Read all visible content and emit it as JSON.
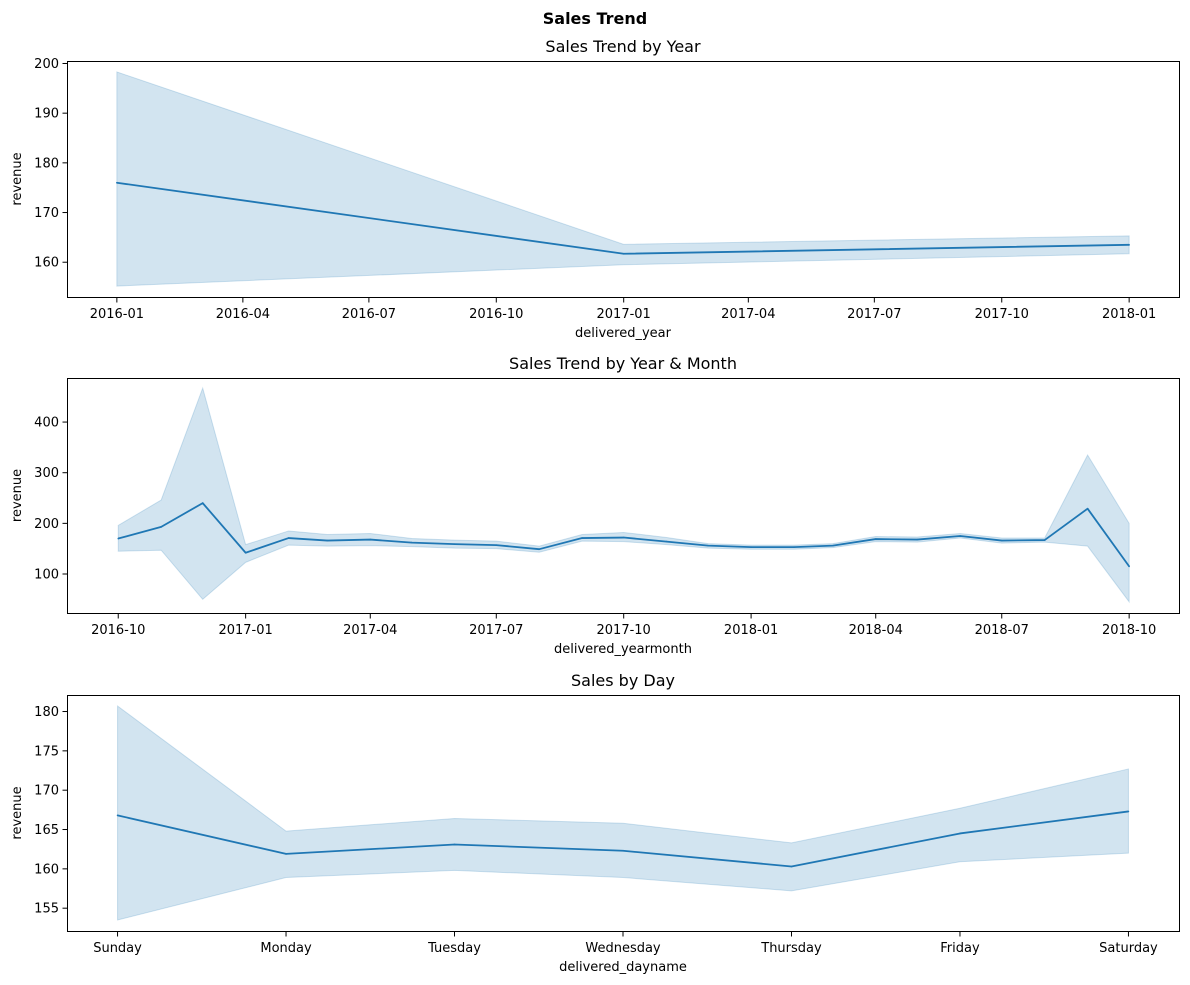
{
  "figure": {
    "title": "Sales Trend",
    "colors": {
      "line": "#1f77b4",
      "band": "#1f77b4"
    }
  },
  "chart_data": [
    {
      "type": "line",
      "title": "Sales Trend by Year",
      "xlabel": "delivered_year",
      "ylabel": "revenue",
      "x_axis": "date",
      "xlim": [
        "2015-11-26",
        "2018-02-06"
      ],
      "ylim": [
        153,
        200.5
      ],
      "x_ticks": [
        "2016-01",
        "2016-04",
        "2016-07",
        "2016-10",
        "2017-01",
        "2017-04",
        "2017-07",
        "2017-10",
        "2018-01"
      ],
      "y_ticks": [
        160,
        170,
        180,
        190,
        200
      ],
      "x": [
        "2016-01-01",
        "2017-01-01",
        "2018-01-01"
      ],
      "values": [
        176,
        161.7,
        163.5
      ],
      "ci_lower": [
        155.2,
        159.5,
        161.7
      ],
      "ci_upper": [
        198.3,
        163.6,
        165.3
      ]
    },
    {
      "type": "line",
      "title": "Sales Trend by Year & Month",
      "xlabel": "delivered_yearmonth",
      "ylabel": "revenue",
      "x_axis": "date",
      "xlim": [
        "2016-08-25",
        "2018-11-06"
      ],
      "ylim": [
        23,
        487
      ],
      "x_ticks": [
        "2016-10",
        "2017-01",
        "2017-04",
        "2017-07",
        "2017-10",
        "2018-01",
        "2018-04",
        "2018-07",
        "2018-10"
      ],
      "y_ticks": [
        100,
        200,
        300,
        400
      ],
      "x": [
        "2016-10-01",
        "2016-11-01",
        "2016-12-01",
        "2017-01-01",
        "2017-02-01",
        "2017-03-01",
        "2017-04-01",
        "2017-05-01",
        "2017-06-01",
        "2017-07-01",
        "2017-08-01",
        "2017-09-01",
        "2017-10-01",
        "2017-11-01",
        "2017-12-01",
        "2018-01-01",
        "2018-02-01",
        "2018-03-01",
        "2018-04-01",
        "2018-05-01",
        "2018-06-01",
        "2018-07-01",
        "2018-08-01",
        "2018-09-01",
        "2018-10-01"
      ],
      "values": [
        170,
        193,
        240,
        142,
        171,
        166,
        168,
        162,
        159,
        157,
        149,
        171,
        172,
        164,
        156,
        153,
        153,
        156,
        169,
        168,
        175,
        166,
        167,
        229,
        115
      ],
      "ci_lower": [
        145,
        147,
        50,
        123,
        157,
        155,
        156,
        154,
        151,
        150,
        143,
        165,
        164,
        158,
        151,
        149,
        149,
        152,
        164,
        163,
        171,
        161,
        163,
        155,
        45
      ],
      "ci_upper": [
        196,
        246,
        467,
        158,
        185,
        178,
        180,
        170,
        167,
        165,
        155,
        178,
        182,
        172,
        160,
        157,
        157,
        160,
        174,
        173,
        180,
        171,
        171,
        335,
        200
      ]
    },
    {
      "type": "line",
      "title": "Sales by Day",
      "xlabel": "delivered_dayname",
      "ylabel": "revenue",
      "x_axis": "category",
      "ylim": [
        152.1,
        182.1
      ],
      "categories": [
        "Sunday",
        "Monday",
        "Tuesday",
        "Wednesday",
        "Thursday",
        "Friday",
        "Saturday"
      ],
      "y_ticks": [
        155,
        160,
        165,
        170,
        175,
        180
      ],
      "values": [
        166.8,
        161.9,
        163.1,
        162.3,
        160.3,
        164.5,
        167.3
      ],
      "ci_lower": [
        153.5,
        158.9,
        159.8,
        158.9,
        157.2,
        160.9,
        162
      ],
      "ci_upper": [
        180.7,
        164.8,
        166.4,
        165.8,
        163.3,
        167.7,
        172.7
      ]
    }
  ]
}
